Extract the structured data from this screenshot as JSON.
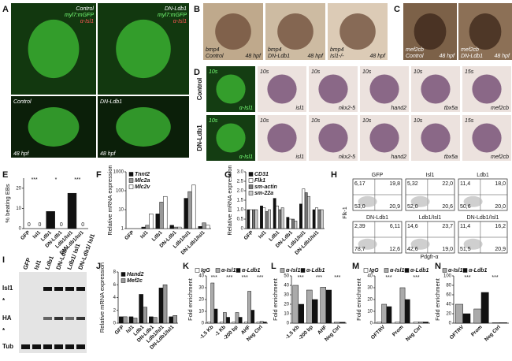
{
  "figure": {
    "image_panels": [
      {
        "label": "A",
        "images": [
          {
            "top_right": [
              "Control",
              "myl7:mGFP",
              "α-Isl1"
            ]
          },
          {
            "top_right": [
              "DN-Ldb1",
              "myl7:mGFP",
              "α-Isl1"
            ]
          },
          {
            "top_left": [
              "Control"
            ],
            "bottom_left": [
              "48 hpf"
            ]
          },
          {
            "top_left": [
              "DN-Ldb1"
            ],
            "bottom_left": [
              "48 hpf"
            ]
          }
        ]
      },
      {
        "label": "B",
        "images": [
          {
            "bottom_left": [
              "bmp4",
              "Control"
            ],
            "bottom_right": [
              "48 hpf"
            ]
          },
          {
            "bottom_left": [
              "bmp4",
              "DN-Ldb1"
            ],
            "bottom_right": [
              "48 hpf"
            ]
          },
          {
            "bottom_left": [
              "bmp4",
              "Isl1-/-"
            ],
            "bottom_right": [
              "48 hpf"
            ]
          }
        ]
      },
      {
        "label": "C",
        "images": [
          {
            "bottom_left": [
              "mef2cb",
              "Control"
            ],
            "bottom_right": [
              "48 hpf"
            ]
          },
          {
            "bottom_left": [
              "mef2cb",
              "DN-Ldb1"
            ],
            "bottom_right": [
              "48 hpf"
            ]
          }
        ]
      },
      {
        "label": "D",
        "rows": [
          "Control",
          "DN-Ldb1"
        ],
        "images": [
          {
            "top_left": [
              "10s"
            ],
            "bottom_right": [
              "α-Isl1"
            ]
          },
          {
            "top_left": [
              "10s"
            ],
            "bottom_right": [
              "isl1"
            ]
          },
          {
            "top_left": [
              "10s"
            ],
            "bottom_right": [
              "nkx2-5"
            ]
          },
          {
            "top_left": [
              "10s"
            ],
            "bottom_right": [
              "hand2"
            ]
          },
          {
            "top_left": [
              "10s"
            ],
            "bottom_right": [
              "tbx5a"
            ]
          },
          {
            "top_left": [
              "15s"
            ],
            "bottom_right": [
              "mef2cb"
            ]
          },
          {
            "top_left": [
              "10s"
            ],
            "bottom_right": [
              "α-Isl1"
            ]
          },
          {
            "top_left": [
              "10s"
            ],
            "bottom_right": [
              "isl1"
            ]
          },
          {
            "top_left": [
              "10s"
            ],
            "bottom_right": [
              "nkx2-5"
            ]
          },
          {
            "top_left": [
              "10s"
            ],
            "bottom_right": [
              "hand2"
            ]
          },
          {
            "top_left": [
              "10s"
            ],
            "bottom_right": [
              "tbx5a"
            ]
          },
          {
            "top_left": [
              "15s"
            ],
            "bottom_right": [
              "mef2cb"
            ]
          }
        ]
      }
    ],
    "flow": {
      "label": "H",
      "y_label": "Flk-1",
      "x_label": "Pdgfr-α",
      "plots": [
        {
          "title": "GFP",
          "quadrants": [
            "6,17",
            "19,8",
            "53,0",
            "20,9"
          ]
        },
        {
          "title": "Isl1",
          "quadrants": [
            "5,32",
            "22,0",
            "52,0",
            "20,6"
          ]
        },
        {
          "title": "Ldb1",
          "quadrants": [
            "11,4",
            "18,0",
            "50,6",
            "20,0"
          ]
        },
        {
          "title": "DN-Ldb1",
          "quadrants": [
            "2,39",
            "6,11",
            "78,7",
            "12,6"
          ]
        },
        {
          "title": "Ldb1/Isl1",
          "quadrants": [
            "14,6",
            "23,7",
            "42,6",
            "19,0"
          ]
        },
        {
          "title": "DN-Ldb1/Isl1",
          "quadrants": [
            "11,4",
            "16,2",
            "51,5",
            "20,9"
          ]
        }
      ]
    },
    "blot": {
      "label": "I",
      "lanes": [
        "GFP",
        "Isl1",
        "Ldb1",
        "DN-Ldb1",
        "Ldb1/ Isl1",
        "DN-Ldb1/ Isl1"
      ],
      "rows": [
        "Isl1",
        "*",
        "HA",
        "*",
        "Tub"
      ]
    }
  },
  "chart_data": [
    {
      "type": "bar",
      "panel_label": "E",
      "y_label": "% beating EBs",
      "categories": [
        "GFP",
        "Isl1",
        "Ldb1",
        "DN-Ldb1",
        "Ldb1/Isl1",
        "DN-Ldb1/Isl1"
      ],
      "series": [
        {
          "name": null,
          "color": "#111111",
          "values": [
            0,
            0,
            8.5,
            0,
            17.5,
            0
          ],
          "value_labels": [
            "0",
            "0",
            null,
            "0",
            null,
            "0"
          ]
        }
      ],
      "ylim": [
        0,
        25
      ],
      "yticks": [
        0,
        10,
        20
      ],
      "annotations": [
        "***",
        "*",
        "***"
      ]
    },
    {
      "type": "bar",
      "panel_label": "F",
      "y_label": "Relative mRNA expression",
      "log_scale": true,
      "categories": [
        "GFP",
        "Isl1",
        "Ldb1",
        "DN-Ldb1",
        "Ldb1/Isl1",
        "DN-Ldb1/Isl1"
      ],
      "series": [
        {
          "name": "Tnnt2",
          "color": "#111111",
          "values": [
            1,
            1.2,
            6,
            1.5,
            40,
            1.3
          ]
        },
        {
          "name": "Mlc2a",
          "color": "#999999",
          "values": [
            1,
            1.5,
            25,
            1.2,
            90,
            2
          ]
        },
        {
          "name": "Mlc2v",
          "color": "#ffffff",
          "values": [
            1,
            6,
            50,
            1.2,
            200,
            1.5
          ]
        }
      ],
      "ylim": [
        1,
        1000
      ],
      "yticks": [
        1,
        10,
        100,
        1000
      ]
    },
    {
      "type": "bar",
      "panel_label": "G",
      "y_label": "Relative mRNA expression",
      "categories": [
        "GFP",
        "Isl1",
        "Ldb1",
        "DN-Ldb1",
        "Ldb1/Isl1",
        "DN-Ldb1/Isl1"
      ],
      "series": [
        {
          "name": "CD31",
          "color": "#111111",
          "values": [
            1,
            1.2,
            1.6,
            0.6,
            1.3,
            1
          ]
        },
        {
          "name": "Flk1",
          "color": "#ffffff",
          "values": [
            1,
            1.1,
            1.2,
            0.5,
            2.1,
            1.1
          ]
        },
        {
          "name": "sm-actin",
          "color": "#777777",
          "values": [
            1,
            0.9,
            1.0,
            0.5,
            1.9,
            1.0
          ]
        },
        {
          "name": "sm-22a",
          "color": "#cccccc",
          "values": [
            1,
            1.0,
            1.1,
            0.4,
            1.7,
            1.0
          ]
        }
      ],
      "ylim": [
        0,
        3
      ],
      "yticks": [
        0,
        0.5,
        {
          "value": 1,
          "label": "1.0"
        },
        1.5,
        {
          "value": 2,
          "label": "2.0"
        },
        2.5,
        {
          "value": 3,
          "label": "3.0"
        }
      ]
    },
    {
      "type": "bar",
      "panel_label": "J",
      "y_label": "Relative mRNA expression",
      "categories": [
        "GFP",
        "Isl1",
        "Ldb1",
        "DN-Ldb1",
        "Ldb1/Isl1",
        "DN-Ldb1/Isl1"
      ],
      "series": [
        {
          "name": "Hand2",
          "color": "#111111",
          "values": [
            1,
            1,
            4.5,
            1,
            5.5,
            1
          ]
        },
        {
          "name": "Mef2c",
          "color": "#999999",
          "values": [
            1,
            0.8,
            2.5,
            0.9,
            6,
            1.2
          ]
        }
      ],
      "ylim": [
        0,
        8
      ],
      "yticks": [
        0,
        2,
        4,
        6,
        8
      ]
    },
    {
      "type": "bar",
      "panel_label": "K",
      "y_label": "Fold enrichment",
      "categories": [
        "-1.5 Kb",
        "-1 Kb",
        "-200 bp",
        "AHF",
        "Neg Ctrl"
      ],
      "series": [
        {
          "name": "IgG",
          "color": "#ffffff",
          "values": [
            1,
            1,
            1,
            1,
            1
          ]
        },
        {
          "name": "α-Isl1",
          "color": "#aaaaaa",
          "values": [
            34,
            9,
            9,
            27,
            1.5
          ]
        },
        {
          "name": "α-Ldb1",
          "color": "#111111",
          "values": [
            12,
            5,
            5,
            11,
            1
          ]
        }
      ],
      "ylim": [
        0,
        40
      ],
      "yticks": [
        0,
        10,
        20,
        30,
        40
      ],
      "annotations": [
        "***",
        "***",
        "***",
        "***"
      ]
    },
    {
      "type": "bar",
      "panel_label": "L",
      "y_label": "Fold enrichment",
      "categories": [
        "-1.5 Kb",
        "-200 bp",
        "AHF",
        "Neg Ctrl"
      ],
      "series": [
        {
          "name": "α-Isl1",
          "color": "#aaaaaa",
          "values": [
            40,
            35,
            38,
            1
          ]
        },
        {
          "name": "α-Ldb1",
          "color": "#111111",
          "values": [
            20,
            25,
            35,
            1
          ]
        }
      ],
      "ylim": [
        0,
        50
      ],
      "yticks": [
        0,
        10,
        20,
        30,
        40,
        50
      ],
      "annotations": [
        "***",
        "***",
        "***"
      ]
    },
    {
      "type": "bar",
      "panel_label": "M",
      "y_label": "Fold enrichment",
      "categories": [
        "OFTRV",
        "Prom",
        "Neg Ctrl"
      ],
      "series": [
        {
          "name": "IgG",
          "color": "#ffffff",
          "values": [
            1,
            1,
            1
          ]
        },
        {
          "name": "α-Isl1",
          "color": "#aaaaaa",
          "values": [
            16,
            30,
            1
          ]
        },
        {
          "name": "α-Ldb1",
          "color": "#111111",
          "values": [
            14,
            20,
            1
          ]
        }
      ],
      "ylim": [
        0,
        40
      ],
      "yticks": [
        0,
        10,
        20,
        30,
        40
      ],
      "annotations": [
        "***",
        "***"
      ]
    },
    {
      "type": "bar",
      "panel_label": "N",
      "y_label": "Fold enrichment",
      "categories": [
        "OFTRV",
        "Prom",
        "Neg Ctrl"
      ],
      "series": [
        {
          "name": "α-Isl1",
          "color": "#aaaaaa",
          "values": [
            40,
            30,
            1
          ]
        },
        {
          "name": "α-Ldb1",
          "color": "#111111",
          "values": [
            20,
            65,
            1
          ]
        }
      ],
      "ylim": [
        0,
        100
      ],
      "yticks": [
        0,
        20,
        40,
        60,
        80,
        100
      ],
      "annotations": [
        "***",
        "***"
      ]
    }
  ]
}
